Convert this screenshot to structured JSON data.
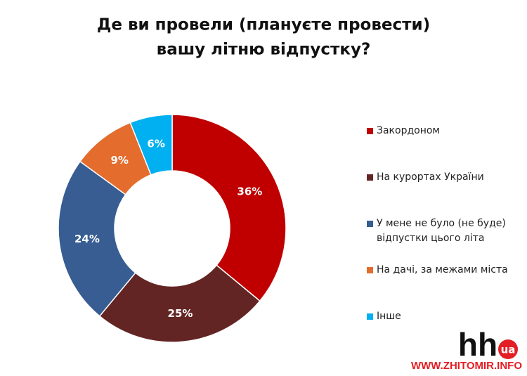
{
  "chart_data": {
    "type": "donut",
    "title": [
      "Де ви провели (плануєте провести)",
      "вашу літню відпустку?"
    ],
    "categories": [
      "Закордоном",
      "На курортах України",
      "У мене не було (не буде) відпустки цього літа",
      "На дачі, за межами міста",
      "Інше"
    ],
    "values": [
      36,
      25,
      24,
      9,
      6
    ],
    "value_labels": [
      "36%",
      "25%",
      "24%",
      "9%",
      "6%"
    ],
    "colors": [
      "#c00000",
      "#632523",
      "#375d92",
      "#e46c2d",
      "#00b0f0"
    ],
    "legend": "right"
  },
  "watermark": {
    "logo": "hh",
    "badge": "ua",
    "site": "WWW.ZHITOMIR.INFO"
  }
}
